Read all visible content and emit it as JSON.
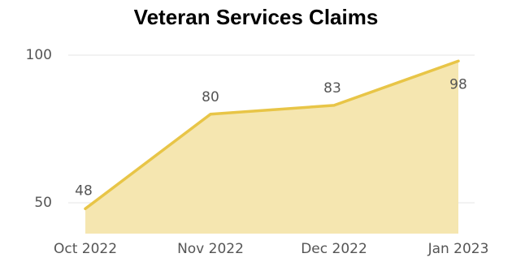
{
  "chart_data": {
    "type": "area",
    "title": "Veteran Services Claims",
    "categories": [
      "Oct 2022",
      "Nov 2022",
      "Dec 2022",
      "Jan 2023"
    ],
    "values": [
      48,
      80,
      83,
      98
    ],
    "data_labels": [
      "48",
      "80",
      "83",
      "98"
    ],
    "y_ticks": [
      "100",
      "50"
    ],
    "ylim": [
      45,
      100
    ],
    "grid": true,
    "line_color": "#E8C547",
    "fill_color": "#F5E6B0"
  }
}
